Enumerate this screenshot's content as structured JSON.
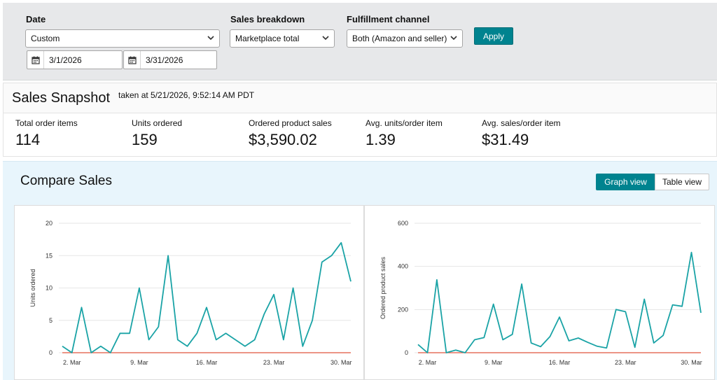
{
  "filters": {
    "date": {
      "label": "Date",
      "value": "Custom",
      "start": "3/1/2026",
      "end": "3/31/2026"
    },
    "breakdown": {
      "label": "Sales breakdown",
      "value": "Marketplace total"
    },
    "channel": {
      "label": "Fulfillment channel",
      "value": "Both (Amazon and seller)"
    },
    "apply_label": "Apply"
  },
  "snapshot": {
    "title": "Sales Snapshot",
    "taken": "taken at 5/21/2026, 9:52:14 AM PDT",
    "metrics": [
      {
        "label": "Total order items",
        "value": "114"
      },
      {
        "label": "Units ordered",
        "value": "159"
      },
      {
        "label": "Ordered product sales",
        "value": "$3,590.02"
      },
      {
        "label": "Avg. units/order item",
        "value": "1.39"
      },
      {
        "label": "Avg. sales/order item",
        "value": "$31.49"
      }
    ]
  },
  "compare": {
    "title": "Compare Sales",
    "graph_view": "Graph view",
    "table_view": "Table view"
  },
  "colors": {
    "accent": "#00838f",
    "series_main": "#1aa3a6",
    "series_baseline": "#e0533d"
  },
  "icons": [
    "chevron-down-icon",
    "calendar-icon"
  ],
  "chart_data": [
    {
      "type": "line",
      "xlabel": "",
      "ylabel": "Units ordered",
      "ylim": [
        0,
        20
      ],
      "yticks": [
        0,
        5,
        10,
        15,
        20
      ],
      "xticks": [
        "2. Mar",
        "9. Mar",
        "16. Mar",
        "23. Mar",
        "30. Mar"
      ],
      "grid": true,
      "x": [
        "2026-03-01",
        "2026-03-02",
        "2026-03-03",
        "2026-03-04",
        "2026-03-05",
        "2026-03-06",
        "2026-03-07",
        "2026-03-08",
        "2026-03-09",
        "2026-03-10",
        "2026-03-11",
        "2026-03-12",
        "2026-03-13",
        "2026-03-14",
        "2026-03-15",
        "2026-03-16",
        "2026-03-17",
        "2026-03-18",
        "2026-03-19",
        "2026-03-20",
        "2026-03-21",
        "2026-03-22",
        "2026-03-23",
        "2026-03-24",
        "2026-03-25",
        "2026-03-26",
        "2026-03-27",
        "2026-03-28",
        "2026-03-29",
        "2026-03-30",
        "2026-03-31"
      ],
      "series": [
        {
          "values": [
            1,
            0,
            7,
            0,
            1,
            0,
            3,
            3,
            10,
            2,
            4,
            15,
            2,
            1,
            3,
            7,
            2,
            3,
            2,
            1,
            2,
            6,
            9,
            2,
            10,
            1,
            5,
            14,
            15,
            17,
            11
          ]
        },
        {
          "values": [
            0,
            0,
            0,
            0,
            0,
            0,
            0,
            0,
            0,
            0,
            0,
            0,
            0,
            0,
            0,
            0,
            0,
            0,
            0,
            0,
            0,
            0,
            0,
            0,
            0,
            0,
            0,
            0,
            0,
            0,
            0
          ]
        }
      ]
    },
    {
      "type": "line",
      "xlabel": "",
      "ylabel": "Ordered product sales",
      "ylim": [
        0,
        600
      ],
      "yticks": [
        0,
        200,
        400,
        600
      ],
      "xticks": [
        "2. Mar",
        "9. Mar",
        "16. Mar",
        "23. Mar",
        "30. Mar"
      ],
      "grid": true,
      "x": [
        "2026-03-01",
        "2026-03-02",
        "2026-03-03",
        "2026-03-04",
        "2026-03-05",
        "2026-03-06",
        "2026-03-07",
        "2026-03-08",
        "2026-03-09",
        "2026-03-10",
        "2026-03-11",
        "2026-03-12",
        "2026-03-13",
        "2026-03-14",
        "2026-03-15",
        "2026-03-16",
        "2026-03-17",
        "2026-03-18",
        "2026-03-19",
        "2026-03-20",
        "2026-03-21",
        "2026-03-22",
        "2026-03-23",
        "2026-03-24",
        "2026-03-25",
        "2026-03-26",
        "2026-03-27",
        "2026-03-28",
        "2026-03-29",
        "2026-03-30",
        "2026-03-31"
      ],
      "series": [
        {
          "values": [
            38,
            0,
            338,
            0,
            12,
            0,
            60,
            70,
            225,
            60,
            85,
            318,
            45,
            28,
            75,
            165,
            55,
            68,
            48,
            30,
            22,
            200,
            190,
            25,
            248,
            45,
            80,
            222,
            215,
            465,
            185
          ]
        },
        {
          "values": [
            0,
            0,
            0,
            0,
            0,
            0,
            0,
            0,
            0,
            0,
            0,
            0,
            0,
            0,
            0,
            0,
            0,
            0,
            0,
            0,
            0,
            0,
            0,
            0,
            0,
            0,
            0,
            0,
            0,
            0,
            0
          ]
        }
      ]
    }
  ]
}
